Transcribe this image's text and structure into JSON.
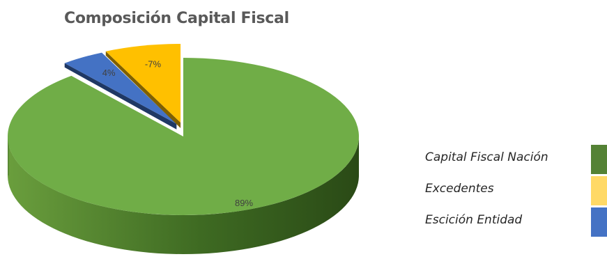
{
  "chart_data": {
    "type": "pie",
    "title": "Composición Capital Fiscal",
    "slices": [
      {
        "name": "Capital Fiscal Nación",
        "value": 89,
        "label": "89%",
        "color": "#70AD47",
        "exploded": false
      },
      {
        "name": "Escición Entidad",
        "value": 4,
        "label": "4%",
        "color": "#4472C4",
        "exploded": true
      },
      {
        "name": "Excedentes",
        "value": 7,
        "label": "-7%",
        "color": "#FFC000",
        "exploded": true
      }
    ],
    "legend": {
      "placement": "right",
      "items": [
        {
          "label": "Capital Fiscal Nación",
          "color": "#548235"
        },
        {
          "label": "Excedentes",
          "color": "#FFD966"
        },
        {
          "label": "Escición Entidad",
          "color": "#4472C4"
        }
      ]
    },
    "style": "3d-exploded-pie"
  }
}
